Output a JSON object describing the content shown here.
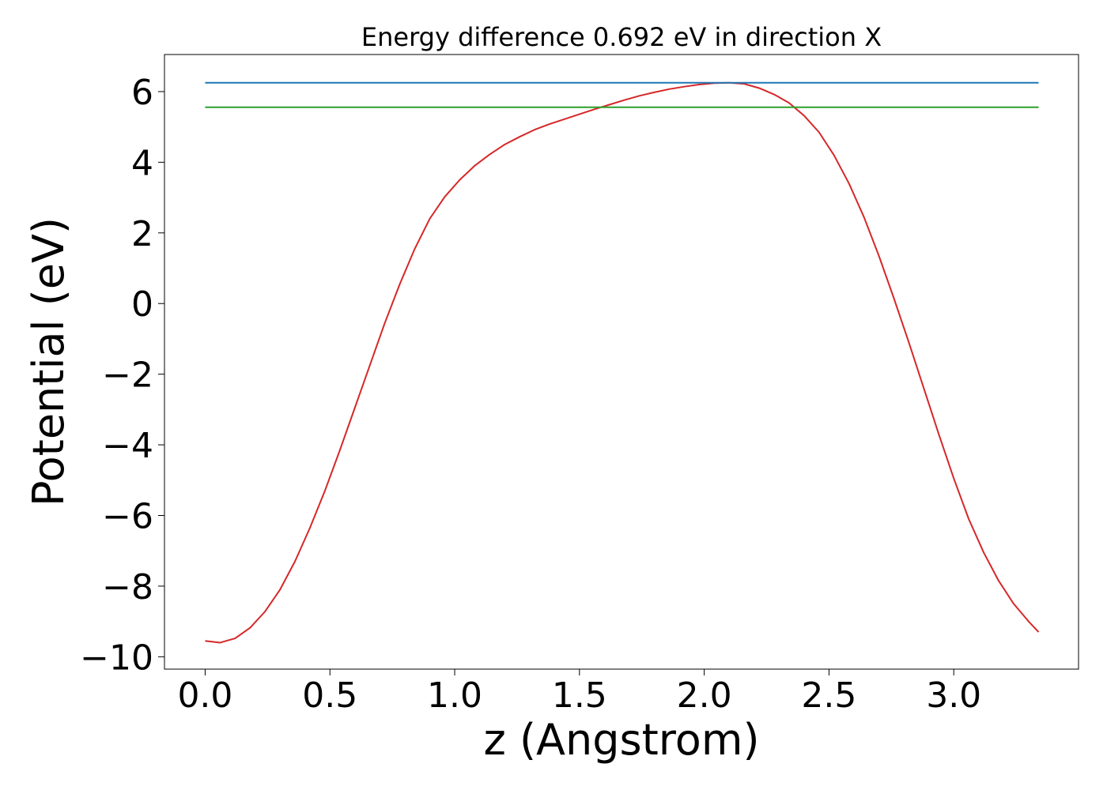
{
  "chart_data": {
    "type": "line",
    "title": "Energy difference 0.692 eV in direction X",
    "xlabel": "z (Angstrom)",
    "ylabel": "Potential (eV)",
    "xlim": [
      -0.163,
      3.5
    ],
    "ylim": [
      -10.35,
      7.05
    ],
    "xticks": [
      0.0,
      0.5,
      1.0,
      1.5,
      2.0,
      2.5,
      3.0
    ],
    "xtick_labels": [
      "0.0",
      "0.5",
      "1.0",
      "1.5",
      "2.0",
      "2.5",
      "3.0"
    ],
    "yticks": [
      -10,
      -8,
      -6,
      -4,
      -2,
      0,
      2,
      4,
      6
    ],
    "ytick_labels": [
      "−10",
      "−8",
      "−6",
      "−4",
      "−2",
      "0",
      "2",
      "4",
      "6"
    ],
    "grid": false,
    "legend": "none",
    "series": [
      {
        "color": "#d62728",
        "x": [
          0.0,
          0.06,
          0.12,
          0.18,
          0.24,
          0.3,
          0.36,
          0.42,
          0.48,
          0.54,
          0.6,
          0.66,
          0.72,
          0.78,
          0.84,
          0.9,
          0.96,
          1.02,
          1.08,
          1.14,
          1.2,
          1.26,
          1.32,
          1.38,
          1.44,
          1.5,
          1.56,
          1.62,
          1.68,
          1.74,
          1.8,
          1.86,
          1.92,
          1.98,
          2.04,
          2.1,
          2.16,
          2.22,
          2.28,
          2.34,
          2.4,
          2.46,
          2.52,
          2.58,
          2.64,
          2.7,
          2.76,
          2.82,
          2.88,
          2.94,
          3.0,
          3.06,
          3.12,
          3.18,
          3.24,
          3.3,
          3.34
        ],
        "y": [
          -9.55,
          -9.6,
          -9.48,
          -9.18,
          -8.72,
          -8.1,
          -7.3,
          -6.35,
          -5.3,
          -4.15,
          -2.95,
          -1.75,
          -0.55,
          0.55,
          1.55,
          2.4,
          3.02,
          3.5,
          3.9,
          4.22,
          4.5,
          4.72,
          4.92,
          5.08,
          5.22,
          5.36,
          5.5,
          5.63,
          5.76,
          5.88,
          5.98,
          6.07,
          6.14,
          6.2,
          6.24,
          6.25,
          6.22,
          6.1,
          5.92,
          5.68,
          5.32,
          4.85,
          4.2,
          3.4,
          2.45,
          1.35,
          0.15,
          -1.1,
          -2.4,
          -3.7,
          -4.95,
          -6.1,
          -7.05,
          -7.85,
          -8.5,
          -9.0,
          -9.3
        ]
      },
      {
        "color": "#1f77b4",
        "x": [
          0.0,
          3.34
        ],
        "y": [
          6.25,
          6.25
        ]
      },
      {
        "color": "#2ca02c",
        "x": [
          0.0,
          3.34
        ],
        "y": [
          5.558,
          5.558
        ]
      }
    ]
  }
}
